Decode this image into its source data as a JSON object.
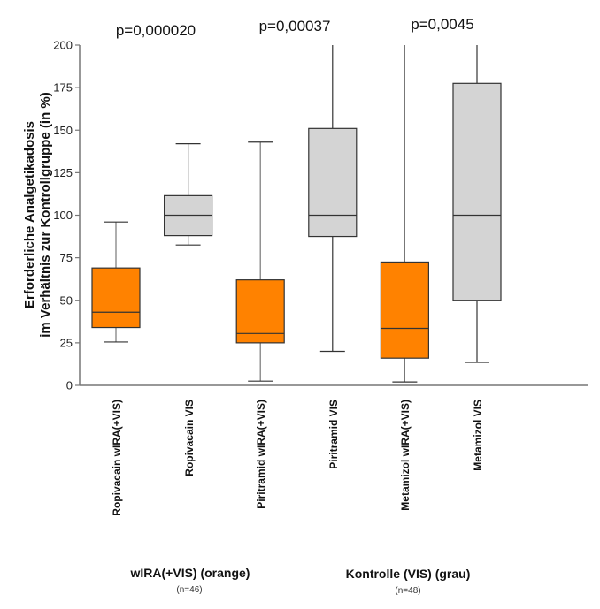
{
  "chart_data": {
    "type": "boxplot",
    "ylabel_line1": "Erforderliche Analgetikadosis",
    "ylabel_line2": "im Verhältnis zur Kontrollgruppe (in %)",
    "ylim": [
      0,
      200
    ],
    "yticks": [
      0,
      25,
      50,
      75,
      100,
      125,
      150,
      175,
      200
    ],
    "grid": false,
    "categories": [
      "Ropivacain  wIRA(+VIS)",
      "Ropivacain  VIS",
      "Piritramid  wIRA(+VIS)",
      "Piritramid  VIS",
      "Metamizol  wIRA(+VIS)",
      "Metamizol  VIS"
    ],
    "boxes": [
      {
        "min": 25.5,
        "q1": 34,
        "median": 43,
        "q3": 69,
        "max": 96,
        "group": "wira"
      },
      {
        "min": 82.5,
        "q1": 88,
        "median": 100,
        "q3": 111.5,
        "max": 142,
        "group": "vis"
      },
      {
        "min": 2.5,
        "q1": 25,
        "median": 30.5,
        "q3": 62,
        "max": 143,
        "group": "wira"
      },
      {
        "min": 20,
        "q1": 87.5,
        "median": 100,
        "q3": 151,
        "max": 200,
        "group": "vis"
      },
      {
        "min": 2,
        "q1": 16,
        "median": 33.5,
        "q3": 72.5,
        "max": 200,
        "group": "wira"
      },
      {
        "min": 13.5,
        "q1": 50,
        "median": 100,
        "q3": 177.5,
        "max": 200,
        "group": "vis"
      }
    ],
    "annotations": [
      "p=0,000020",
      "p=0,00037",
      "p=0,0045"
    ],
    "colors": {
      "wira": "#FF8200",
      "vis": "#D4D4D4"
    }
  },
  "groups": [
    {
      "label": "wIRA(+VIS) (orange)",
      "n": "(n=46)"
    },
    {
      "label": "Kontrolle (VIS) (grau)",
      "n": "(n=48)"
    }
  ]
}
